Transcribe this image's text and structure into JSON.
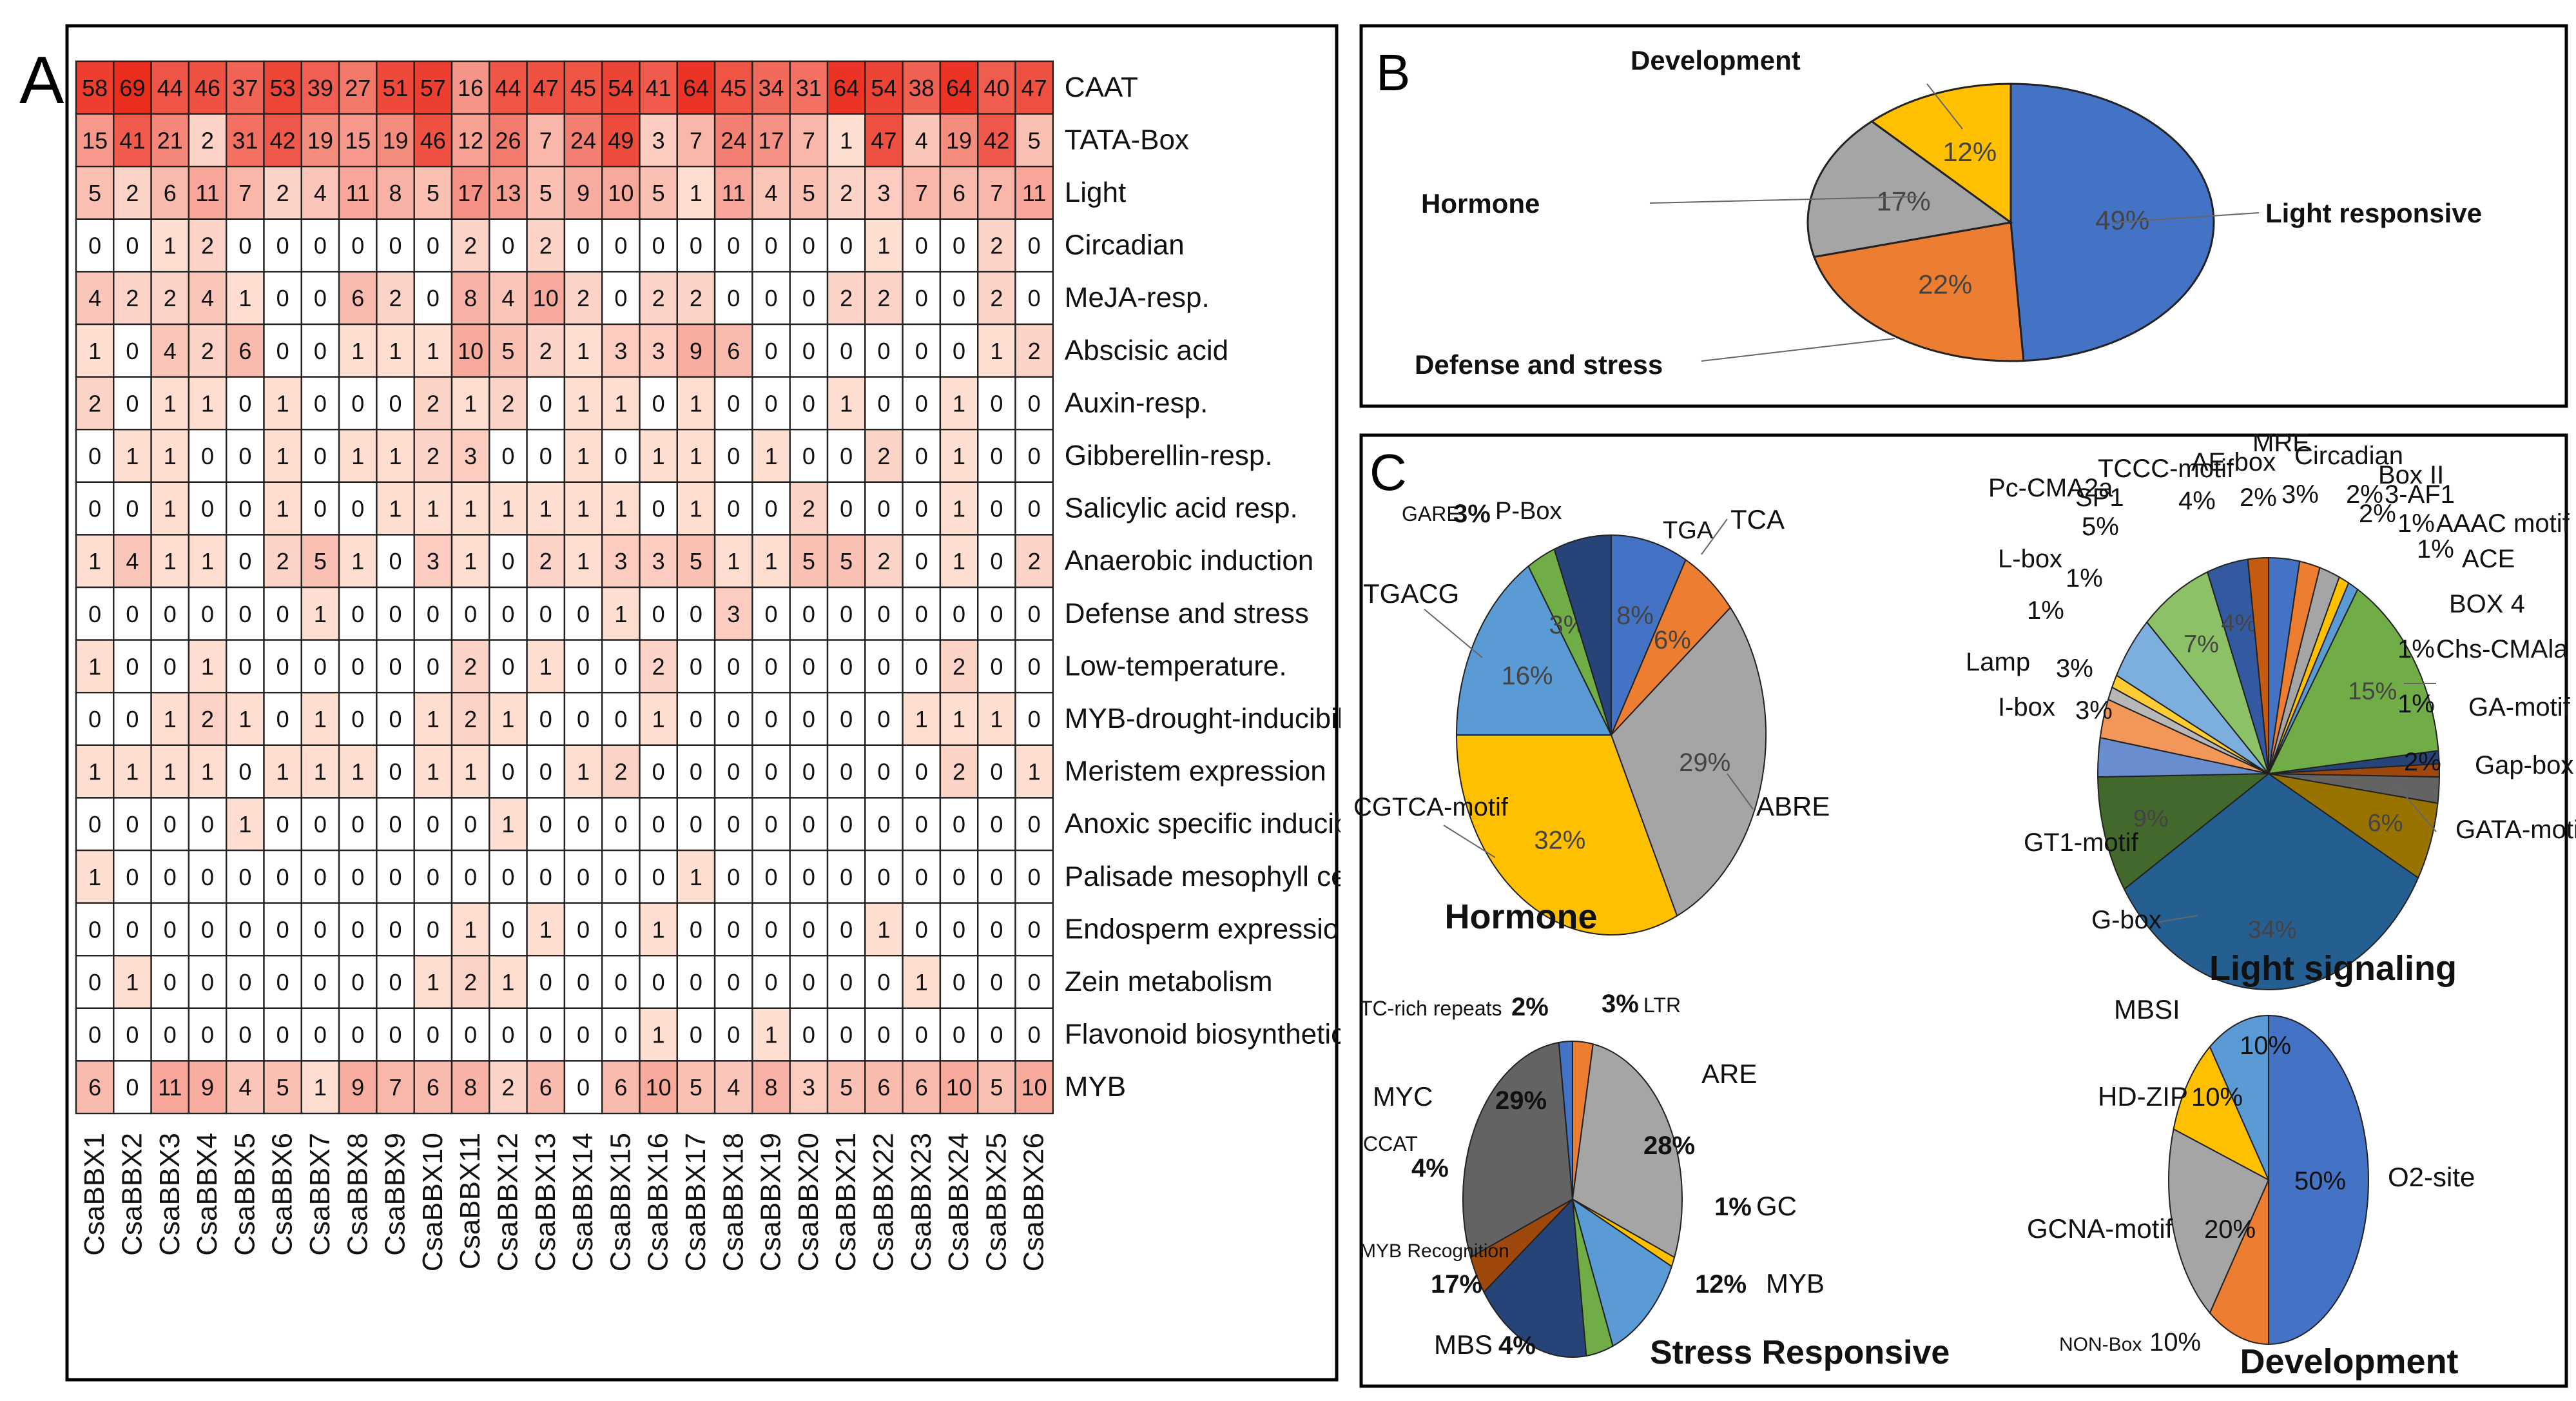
{
  "chart_data": [
    {
      "type": "heatmap",
      "panel": "A",
      "panel_letter": "A",
      "title": "",
      "columns": [
        "CsaBBX1",
        "CsaBBX2",
        "CsaBBX3",
        "CsaBBX4",
        "CsaBBX5",
        "CsaBBX6",
        "CsaBBX7",
        "CsaBBX8",
        "CsaBBX9",
        "CsaBBX10",
        "CsaBBX11",
        "CsaBBX12",
        "CsaBBX13",
        "CsaBBX14",
        "CsaBBX15",
        "CsaBBX16",
        "CsaBBX17",
        "CsaBBX18",
        "CsaBBX19",
        "CsaBBX20",
        "CsaBBX21",
        "CsaBBX22",
        "CsaBBX23",
        "CsaBBX24",
        "CsaBBX25",
        "CsaBBX26"
      ],
      "rows": [
        {
          "label": "CAAT",
          "values": [
            58,
            69,
            44,
            46,
            37,
            53,
            39,
            27,
            51,
            57,
            16,
            44,
            47,
            45,
            54,
            41,
            64,
            45,
            34,
            31,
            64,
            54,
            38,
            64,
            40,
            47
          ]
        },
        {
          "label": "TATA-Box",
          "values": [
            15,
            41,
            21,
            2,
            31,
            42,
            19,
            15,
            19,
            46,
            12,
            26,
            7,
            24,
            49,
            3,
            7,
            24,
            17,
            7,
            1,
            47,
            4,
            19,
            42,
            5
          ]
        },
        {
          "label": "Light",
          "values": [
            5,
            2,
            6,
            11,
            7,
            2,
            4,
            11,
            8,
            5,
            17,
            13,
            5,
            9,
            10,
            5,
            1,
            11,
            4,
            5,
            2,
            3,
            7,
            6,
            7,
            11
          ]
        },
        {
          "label": "Circadian",
          "values": [
            0,
            0,
            1,
            2,
            0,
            0,
            0,
            0,
            0,
            0,
            2,
            0,
            2,
            0,
            0,
            0,
            0,
            0,
            0,
            0,
            0,
            1,
            0,
            0,
            2,
            0
          ]
        },
        {
          "label": "MeJA-resp.",
          "values": [
            4,
            2,
            2,
            4,
            1,
            0,
            0,
            6,
            2,
            0,
            8,
            4,
            10,
            2,
            0,
            2,
            2,
            0,
            0,
            0,
            2,
            2,
            0,
            0,
            2,
            0
          ]
        },
        {
          "label": "Abscisic acid",
          "values": [
            1,
            0,
            4,
            2,
            6,
            0,
            0,
            1,
            1,
            1,
            10,
            5,
            2,
            1,
            3,
            3,
            9,
            6,
            0,
            0,
            0,
            0,
            0,
            0,
            1,
            2
          ]
        },
        {
          "label": "Auxin-resp.",
          "values": [
            2,
            0,
            1,
            1,
            0,
            1,
            0,
            0,
            0,
            2,
            1,
            2,
            0,
            1,
            1,
            0,
            1,
            0,
            0,
            0,
            1,
            0,
            0,
            1,
            0,
            0
          ]
        },
        {
          "label": "Gibberellin-resp.",
          "values": [
            0,
            1,
            1,
            0,
            0,
            1,
            0,
            1,
            1,
            2,
            3,
            0,
            0,
            1,
            0,
            1,
            1,
            0,
            1,
            0,
            0,
            2,
            0,
            1,
            0,
            0
          ]
        },
        {
          "label": "Salicylic acid resp.",
          "values": [
            0,
            0,
            1,
            0,
            0,
            1,
            0,
            0,
            1,
            1,
            1,
            1,
            1,
            1,
            1,
            0,
            1,
            0,
            0,
            2,
            0,
            0,
            0,
            1,
            0,
            0
          ]
        },
        {
          "label": "Anaerobic induction",
          "values": [
            1,
            4,
            1,
            1,
            0,
            2,
            5,
            1,
            0,
            3,
            1,
            0,
            2,
            1,
            3,
            3,
            5,
            1,
            1,
            5,
            5,
            2,
            0,
            1,
            0,
            2
          ]
        },
        {
          "label": "Defense and stress",
          "values": [
            0,
            0,
            0,
            0,
            0,
            0,
            1,
            0,
            0,
            0,
            0,
            0,
            0,
            0,
            1,
            0,
            0,
            3,
            0,
            0,
            0,
            0,
            0,
            0,
            0,
            0
          ]
        },
        {
          "label": "Low-temperature.",
          "values": [
            1,
            0,
            0,
            1,
            0,
            0,
            0,
            0,
            0,
            0,
            2,
            0,
            1,
            0,
            0,
            2,
            0,
            0,
            0,
            0,
            0,
            0,
            0,
            2,
            0,
            0
          ]
        },
        {
          "label": "MYB-drought-inducibility",
          "values": [
            0,
            0,
            1,
            2,
            1,
            0,
            1,
            0,
            0,
            1,
            2,
            1,
            0,
            0,
            0,
            1,
            0,
            0,
            0,
            0,
            0,
            0,
            1,
            1,
            1,
            0
          ]
        },
        {
          "label": "Meristem expression",
          "values": [
            1,
            1,
            1,
            1,
            0,
            1,
            1,
            1,
            0,
            1,
            1,
            0,
            0,
            1,
            2,
            0,
            0,
            0,
            0,
            0,
            0,
            0,
            0,
            2,
            0,
            1
          ]
        },
        {
          "label": "Anoxic specific inducibility",
          "values": [
            0,
            0,
            0,
            0,
            1,
            0,
            0,
            0,
            0,
            0,
            0,
            1,
            0,
            0,
            0,
            0,
            0,
            0,
            0,
            0,
            0,
            0,
            0,
            0,
            0,
            0
          ]
        },
        {
          "label": "Palisade mesophyll cells",
          "values": [
            1,
            0,
            0,
            0,
            0,
            0,
            0,
            0,
            0,
            0,
            0,
            0,
            0,
            0,
            0,
            0,
            1,
            0,
            0,
            0,
            0,
            0,
            0,
            0,
            0,
            0
          ]
        },
        {
          "label": "Endosperm expression",
          "values": [
            0,
            0,
            0,
            0,
            0,
            0,
            0,
            0,
            0,
            0,
            1,
            0,
            1,
            0,
            0,
            1,
            0,
            0,
            0,
            0,
            0,
            1,
            0,
            0,
            0,
            0
          ]
        },
        {
          "label": "Zein metabolism",
          "values": [
            0,
            1,
            0,
            0,
            0,
            0,
            0,
            0,
            0,
            1,
            2,
            1,
            0,
            0,
            0,
            0,
            0,
            0,
            0,
            0,
            0,
            0,
            1,
            0,
            0,
            0
          ]
        },
        {
          "label": "Flavonoid biosynthetic",
          "values": [
            0,
            0,
            0,
            0,
            0,
            0,
            0,
            0,
            0,
            0,
            0,
            0,
            0,
            0,
            0,
            1,
            0,
            0,
            1,
            0,
            0,
            0,
            0,
            0,
            0,
            0
          ]
        },
        {
          "label": "MYB",
          "values": [
            6,
            0,
            11,
            9,
            4,
            5,
            1,
            9,
            7,
            6,
            8,
            2,
            6,
            0,
            6,
            10,
            5,
            4,
            8,
            3,
            5,
            6,
            6,
            10,
            5,
            10
          ]
        }
      ]
    },
    {
      "type": "pie",
      "panel": "B",
      "panel_letter": "B",
      "slices": [
        {
          "label": "Light responsive",
          "value": 49,
          "pct": "49%",
          "color": "#4472C4"
        },
        {
          "label": "Defense and stress",
          "value": 22,
          "pct": "22%",
          "color": "#ED7D31"
        },
        {
          "label": "Hormone",
          "value": 17,
          "pct": "17%",
          "color": "#A5A5A5"
        },
        {
          "label": "Development",
          "value": 12,
          "pct": "12%",
          "color": "#FFC000"
        }
      ]
    },
    {
      "type": "pie",
      "panel": "C",
      "panel_letter": "C",
      "title": "Hormone",
      "slices": [
        {
          "label": "TGA",
          "value": 8,
          "pct": "8%",
          "color": "#4472C4"
        },
        {
          "label": "TCA",
          "value": 6,
          "pct": "6%",
          "color": "#ED7D31"
        },
        {
          "label": "ABRE",
          "value": 29,
          "pct": "29%",
          "color": "#A5A5A5"
        },
        {
          "label": "CGTCA-motif",
          "value": 32,
          "pct": "32%",
          "color": "#FFC000"
        },
        {
          "label": "TGACG",
          "value": 16,
          "pct": "16%",
          "color": "#5B9BD5"
        },
        {
          "label": "GARE",
          "value": 3,
          "pct": "3%",
          "color": "#70AD47"
        },
        {
          "label": "P-Box",
          "value": 6,
          "pct": "",
          "color": "#264478"
        }
      ]
    },
    {
      "type": "pie",
      "panel": "C",
      "title": "Light signaling",
      "slices": [
        {
          "label": "Circadian",
          "value": 3,
          "pct": "3%",
          "color": "#4472C4"
        },
        {
          "label": "Box II",
          "value": 2,
          "pct": "2%",
          "color": "#ED7D31"
        },
        {
          "label": "3-AF1",
          "value": 2,
          "pct": "2%",
          "color": "#A5A5A5"
        },
        {
          "label": "AAAC motif",
          "value": 1,
          "pct": "1%",
          "color": "#FFC000"
        },
        {
          "label": "ACE",
          "value": 1,
          "pct": "1%",
          "color": "#5B9BD5"
        },
        {
          "label": "BOX 4",
          "value": 15,
          "pct": "15%",
          "color": "#70AD47"
        },
        {
          "label": "Chs-CMAla",
          "value": 1,
          "pct": "1%",
          "color": "#264478"
        },
        {
          "label": "GA-motif",
          "value": 1,
          "pct": "1%",
          "color": "#9E480E"
        },
        {
          "label": "Gap-box",
          "value": 2,
          "pct": "2%",
          "color": "#636363"
        },
        {
          "label": "GATA-motif",
          "value": 6,
          "pct": "6%",
          "color": "#997300"
        },
        {
          "label": "G-box",
          "value": 34,
          "pct": "34%",
          "color": "#255E91"
        },
        {
          "label": "GT1-motif",
          "value": 9,
          "pct": "9%",
          "color": "#43682B"
        },
        {
          "label": "I-box",
          "value": 3,
          "pct": "3%",
          "color": "#698ED0"
        },
        {
          "label": "Lamp",
          "value": 3,
          "pct": "3%",
          "color": "#F1975A"
        },
        {
          "label": "L-box",
          "value": 1,
          "pct": "1%",
          "color": "#B7B7B7"
        },
        {
          "label": "Pc-CMA2a",
          "value": 1,
          "pct": "1%",
          "color": "#FFCD33"
        },
        {
          "label": "SP1",
          "value": 5,
          "pct": "5%",
          "color": "#7CAFDD"
        },
        {
          "label": "TCCC-motif",
          "value": 7,
          "pct": "7%",
          "color": "#8CC168"
        },
        {
          "label": "AE-box",
          "value": 4,
          "pct": "4%",
          "color": "#335AA1"
        },
        {
          "label": "MRE",
          "value": 2,
          "pct": "2%",
          "color": "#C55A11"
        }
      ]
    },
    {
      "type": "pie",
      "panel": "C",
      "title": "Stress Responsive",
      "slices": [
        {
          "label": "LTR",
          "value": 3,
          "pct": "3%",
          "color": "#ED7D31"
        },
        {
          "label": "ARE",
          "value": 28,
          "pct": "28%",
          "color": "#A5A5A5"
        },
        {
          "label": "GC",
          "value": 1,
          "pct": "1%",
          "color": "#FFC000"
        },
        {
          "label": "MYB",
          "value": 12,
          "pct": "12%",
          "color": "#5B9BD5"
        },
        {
          "label": "MBS",
          "value": 4,
          "pct": "4%",
          "color": "#70AD47"
        },
        {
          "label": "MYB Recognition",
          "value": 17,
          "pct": "17%",
          "color": "#264478"
        },
        {
          "label": "CCAT",
          "value": 4,
          "pct": "4%",
          "color": "#9E480E"
        },
        {
          "label": "MYC",
          "value": 29,
          "pct": "29%",
          "color": "#636363"
        },
        {
          "label": "TC-rich repeats",
          "value": 2,
          "pct": "2%",
          "color": "#4472C4"
        }
      ]
    },
    {
      "type": "pie",
      "panel": "C",
      "title": "Development",
      "slices": [
        {
          "label": "O2-site",
          "value": 50,
          "pct": "50%",
          "color": "#4472C4"
        },
        {
          "label": "NON-Box",
          "value": 10,
          "pct": "10%",
          "color": "#ED7D31"
        },
        {
          "label": "GCNA-motif",
          "value": 20,
          "pct": "20%",
          "color": "#A5A5A5"
        },
        {
          "label": "HD-ZIP",
          "value": 10,
          "pct": "10%",
          "color": "#FFC000"
        },
        {
          "label": "MBSI",
          "value": 10,
          "pct": "10%",
          "color": "#5B9BD5"
        }
      ]
    }
  ]
}
